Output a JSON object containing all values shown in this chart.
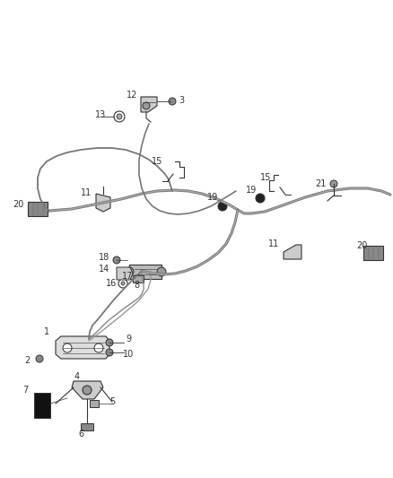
{
  "bg_color": "#ffffff",
  "line_color": "#666666",
  "dark_color": "#333333",
  "label_color": "#333333",
  "fig_width": 4.38,
  "fig_height": 5.33,
  "dpi": 100,
  "cable_color": "#777777",
  "component_color": "#888888",
  "component_fill": "#cccccc",
  "label_fontsize": 7.0
}
